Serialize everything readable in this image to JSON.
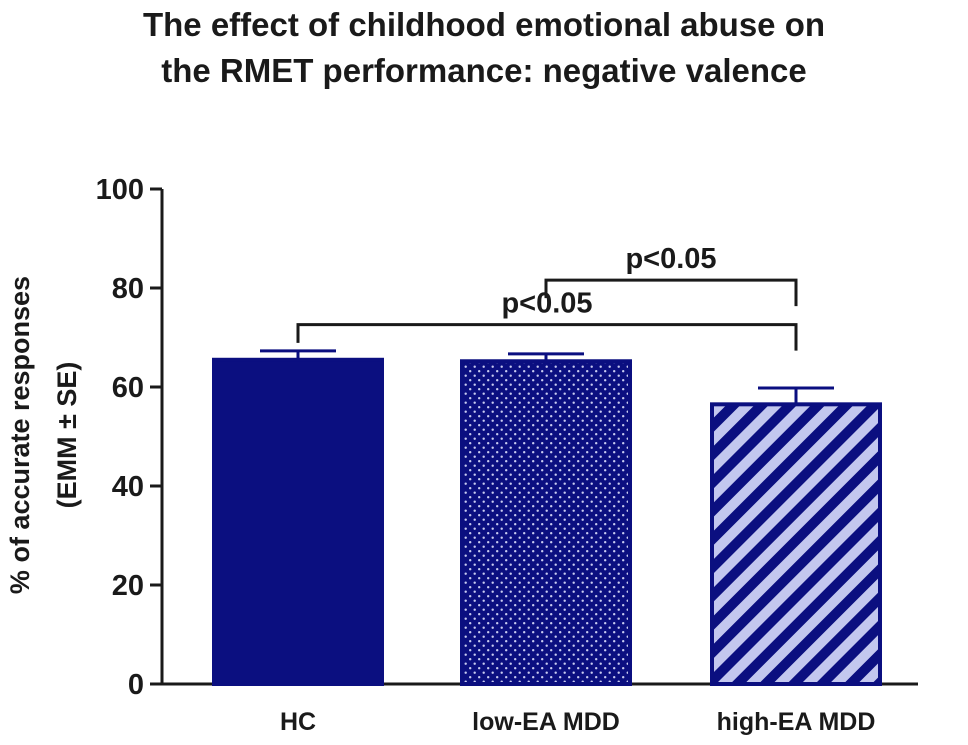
{
  "chart_data": {
    "type": "bar",
    "title": "The effect of childhood emotional abuse on the RMET performance: negative valence",
    "title_lines": [
      "The effect of childhood emotional abuse on",
      "the RMET performance: negative valence"
    ],
    "ylabel_lines": [
      "% of accurate responses",
      "(EMM ± SE)"
    ],
    "xlabel": "",
    "ylim": [
      0,
      100
    ],
    "yticks": [
      0,
      20,
      40,
      60,
      80,
      100
    ],
    "categories": [
      "HC",
      "low-EA MDD",
      "high-EA MDD"
    ],
    "values": [
      65.5,
      65.2,
      56.5
    ],
    "errors": [
      1.8,
      1.5,
      3.3
    ],
    "patterns": [
      "solid",
      "dotted",
      "striped"
    ],
    "significance": [
      {
        "from": 0,
        "to": 2,
        "label": "p<0.05",
        "y": 72.6
      },
      {
        "from": 1,
        "to": 2,
        "label": "p<0.05",
        "y": 81.6
      }
    ]
  },
  "colors": {
    "bar_fill": "#0b0f80",
    "bar_stroke": "#0b0f80",
    "stripe_light": "#c3c7ef",
    "dot": "#c8cbf0",
    "axis": "#1a1a1a"
  }
}
